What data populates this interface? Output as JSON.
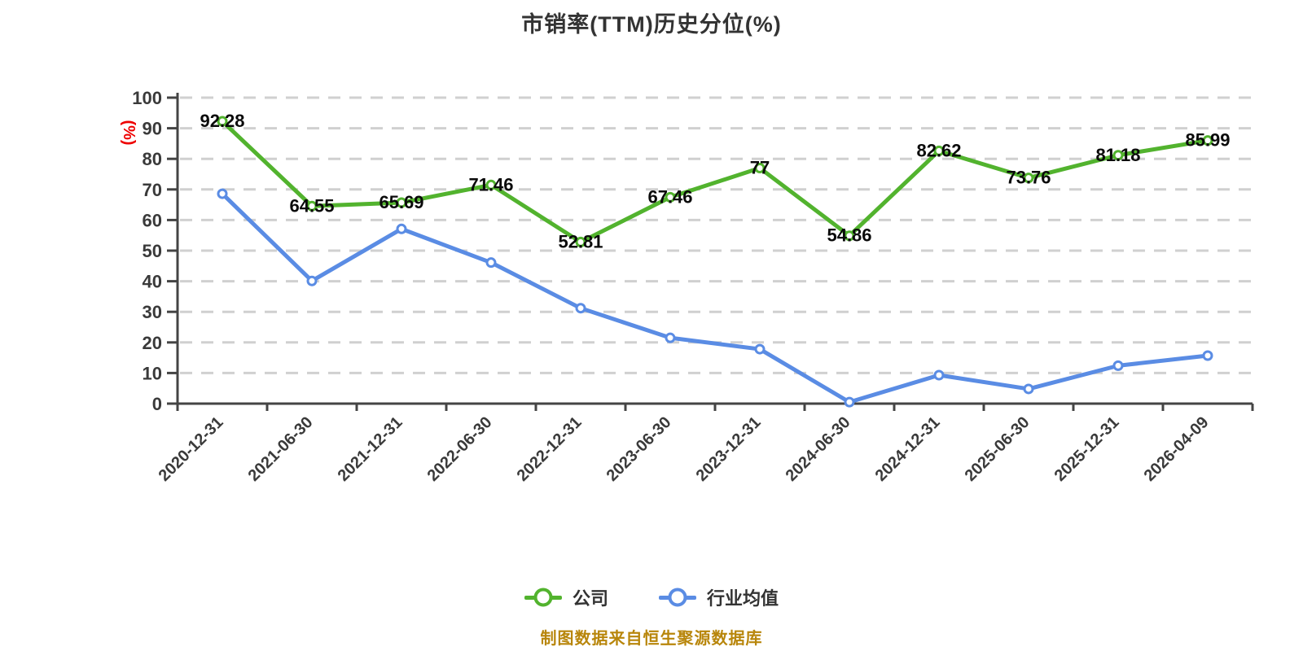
{
  "chart_data": {
    "type": "line",
    "title": "市销率(TTM)历史分位(%)",
    "ylabel": "(%)",
    "xlabel": "",
    "categories": [
      "2020-12-31",
      "2021-06-30",
      "2021-12-31",
      "2022-06-30",
      "2022-12-31",
      "2023-06-30",
      "2023-12-31",
      "2024-06-30",
      "2024-12-31",
      "2025-06-30",
      "2025-12-31",
      "2026-04-09"
    ],
    "series": [
      {
        "name": "公司",
        "color": "#52b32e",
        "values": [
          92.28,
          64.55,
          65.69,
          71.46,
          52.81,
          67.46,
          77,
          54.86,
          82.62,
          73.76,
          81.18,
          85.99
        ],
        "point_labels": [
          "92.28",
          "64.55",
          "65.69",
          "71.46",
          "52.81",
          "67.46",
          "77",
          "54.86",
          "82.62",
          "73.76",
          "81.18",
          "85.99"
        ],
        "labels_shown": true
      },
      {
        "name": "行业均值",
        "color": "#5a8ce4",
        "values": [
          68.6,
          40.1,
          57.1,
          46.1,
          31.2,
          21.5,
          17.8,
          0.5,
          9.3,
          4.8,
          12.4,
          15.7
        ],
        "point_labels": [],
        "labels_shown": false
      }
    ],
    "ylim": [
      0,
      100
    ],
    "ytick_interval": 10,
    "grid": "horizontal-dashed",
    "gridline_color": "#d0d0d0",
    "axis_color": "#444444",
    "tick_label_color": "#3a3a3a",
    "data_label_color": "#0a0a0a",
    "unit_label_color": "#ee0000",
    "legend_position": "bottom",
    "source_note": "制图数据来自恒生聚源数据库",
    "source_note_color": "#b8860b"
  }
}
